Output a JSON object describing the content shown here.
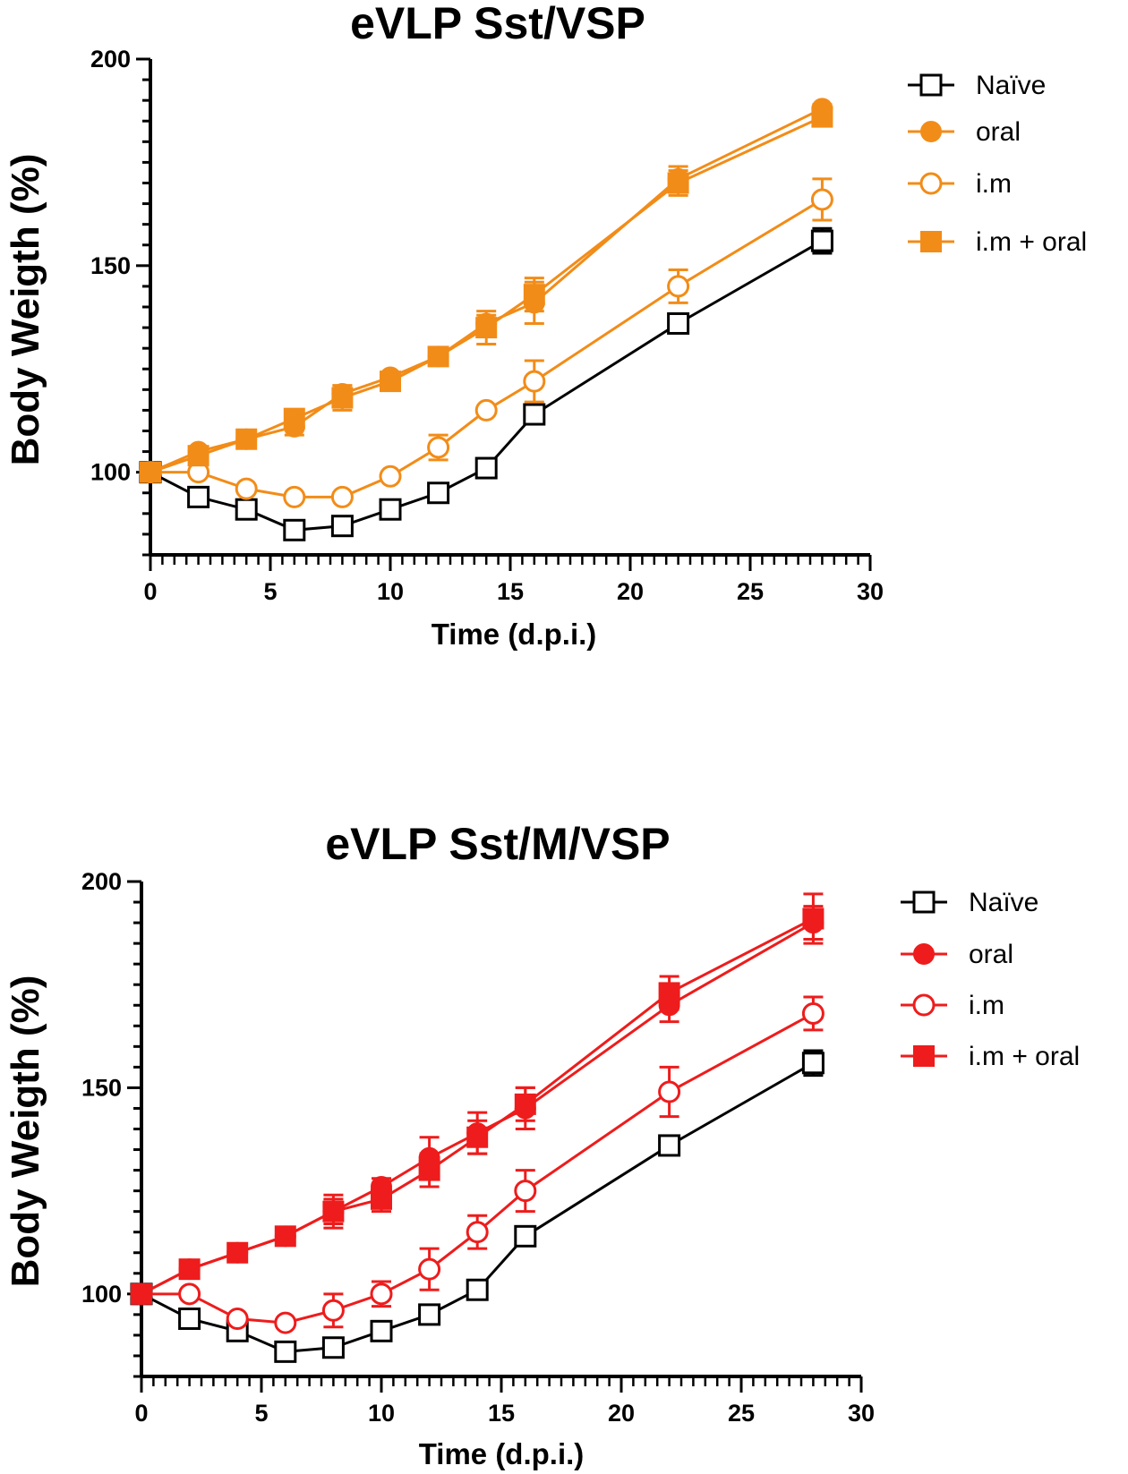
{
  "chart_data": [
    {
      "type": "line",
      "title": "eVLP Sst/VSP",
      "xlabel": "Time (d.p.i.)",
      "ylabel": "Body Weigth (%)",
      "xlim": [
        0,
        30
      ],
      "ylim": [
        80,
        200
      ],
      "xticks": [
        0,
        5,
        10,
        15,
        20,
        25,
        30
      ],
      "yticks": [
        100,
        150,
        200
      ],
      "legend_position": "right",
      "series": [
        {
          "name": "Naïve",
          "color": "#000000",
          "marker": "square-open",
          "x": [
            0,
            2,
            4,
            6,
            8,
            10,
            12,
            14,
            16,
            22,
            28
          ],
          "values": [
            100,
            94,
            91,
            86,
            87,
            91,
            95,
            101,
            114,
            136,
            156
          ],
          "error": [
            0,
            0,
            0,
            0,
            0,
            0,
            0,
            0,
            1,
            1,
            3
          ]
        },
        {
          "name": "oral",
          "color": "#F28C18",
          "marker": "circle-filled",
          "x": [
            0,
            2,
            4,
            6,
            8,
            10,
            12,
            14,
            16,
            22,
            28
          ],
          "values": [
            100,
            105,
            108,
            111,
            119,
            123,
            128,
            136,
            141,
            171,
            188
          ],
          "error": [
            0,
            1,
            1,
            2,
            2,
            1,
            1,
            2,
            5,
            3,
            1
          ]
        },
        {
          "name": "i.m",
          "color": "#F28C18",
          "marker": "circle-open",
          "x": [
            0,
            2,
            4,
            6,
            8,
            10,
            12,
            14,
            16,
            22,
            28
          ],
          "values": [
            100,
            100,
            96,
            94,
            94,
            99,
            106,
            115,
            122,
            145,
            166
          ],
          "error": [
            0,
            0,
            0,
            0,
            0,
            0,
            3,
            0,
            5,
            4,
            5
          ]
        },
        {
          "name": "i.m + oral",
          "color": "#F28C18",
          "marker": "square-filled",
          "x": [
            0,
            2,
            4,
            6,
            8,
            10,
            12,
            14,
            16,
            22,
            28
          ],
          "values": [
            100,
            104,
            108,
            113,
            118,
            122,
            128,
            135,
            143,
            170,
            186
          ],
          "error": [
            0,
            1,
            2,
            2,
            3,
            2,
            1,
            4,
            4,
            3,
            2
          ]
        }
      ]
    },
    {
      "type": "line",
      "title": "eVLP Sst/M/VSP",
      "xlabel": "Time (d.p.i.)",
      "ylabel": "Body Weigth (%)",
      "xlim": [
        0,
        30
      ],
      "ylim": [
        80,
        200
      ],
      "xticks": [
        0,
        5,
        10,
        15,
        20,
        25,
        30
      ],
      "yticks": [
        100,
        150,
        200
      ],
      "legend_position": "right",
      "series": [
        {
          "name": "Naïve",
          "color": "#000000",
          "marker": "square-open",
          "x": [
            0,
            2,
            4,
            6,
            8,
            10,
            12,
            14,
            16,
            22,
            28
          ],
          "values": [
            100,
            94,
            91,
            86,
            87,
            91,
            95,
            101,
            114,
            136,
            156
          ],
          "error": [
            0,
            0,
            0,
            0,
            0,
            0,
            0,
            0,
            1,
            1,
            3
          ]
        },
        {
          "name": "oral",
          "color": "#EE1C1C",
          "marker": "circle-filled",
          "x": [
            0,
            2,
            4,
            6,
            8,
            10,
            12,
            14,
            16,
            22,
            28
          ],
          "values": [
            100,
            106,
            110,
            114,
            120,
            126,
            133,
            139,
            145,
            170,
            190
          ],
          "error": [
            0,
            1,
            1,
            2,
            3,
            2,
            5,
            5,
            5,
            4,
            4
          ]
        },
        {
          "name": "i.m",
          "color": "#EE1C1C",
          "marker": "circle-open",
          "x": [
            0,
            2,
            4,
            6,
            8,
            10,
            12,
            14,
            16,
            22,
            28
          ],
          "values": [
            100,
            100,
            94,
            93,
            96,
            100,
            106,
            115,
            125,
            149,
            168
          ],
          "error": [
            0,
            0,
            0,
            0,
            4,
            3,
            5,
            4,
            5,
            6,
            4
          ]
        },
        {
          "name": "i.m + oral",
          "color": "#EE1C1C",
          "marker": "square-filled",
          "x": [
            0,
            2,
            4,
            6,
            8,
            10,
            12,
            14,
            16,
            22,
            28
          ],
          "values": [
            100,
            106,
            110,
            114,
            120,
            123,
            130,
            138,
            146,
            173,
            191
          ],
          "error": [
            0,
            1,
            1,
            2,
            4,
            3,
            4,
            4,
            4,
            4,
            6
          ]
        }
      ]
    }
  ]
}
